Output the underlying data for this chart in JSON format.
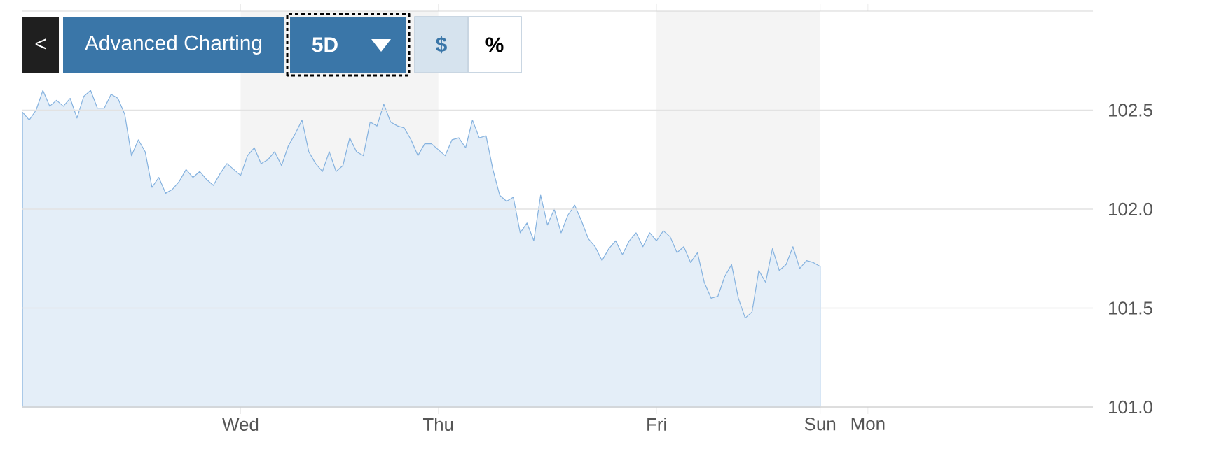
{
  "chart_data": {
    "type": "area",
    "categories": [
      null,
      null,
      null,
      null,
      null,
      null,
      null,
      null,
      null,
      null,
      null,
      null,
      null,
      null,
      null,
      null,
      null,
      null,
      null,
      null,
      null,
      null,
      null,
      null,
      null,
      null,
      null,
      null,
      null,
      null,
      null,
      null,
      "Wed",
      null,
      null,
      null,
      null,
      null,
      null,
      null,
      null,
      null,
      null,
      null,
      null,
      null,
      null,
      null,
      null,
      null,
      null,
      null,
      null,
      null,
      null,
      null,
      null,
      null,
      null,
      null,
      null,
      "Thu",
      null,
      null,
      null,
      null,
      null,
      null,
      null,
      null,
      null,
      null,
      null,
      null,
      null,
      null,
      null,
      null,
      null,
      null,
      null,
      null,
      null,
      null,
      null,
      null,
      null,
      null,
      null,
      null,
      null,
      null,
      null,
      "Fri",
      null,
      null,
      null,
      null,
      null,
      null,
      null,
      null,
      null,
      null,
      null,
      null,
      null,
      null,
      null,
      null,
      null,
      null,
      null,
      null,
      null,
      null,
      null,
      "Sun",
      null,
      null,
      null,
      null,
      null,
      null,
      "Mon",
      null,
      null,
      null,
      null,
      null,
      null,
      null,
      null,
      null,
      null,
      null,
      null,
      null,
      null,
      null,
      null,
      null,
      null,
      null,
      null,
      null,
      null,
      null,
      null,
      null,
      null,
      null,
      null,
      null,
      null,
      null,
      null,
      null
    ],
    "series": [
      {
        "color": "#85b2df",
        "values": [
          102.49,
          102.45,
          102.5,
          102.6,
          102.52,
          102.55,
          102.52,
          102.56,
          102.46,
          102.57,
          102.6,
          102.51,
          102.51,
          102.58,
          102.56,
          102.48,
          102.27,
          102.35,
          102.29,
          102.11,
          102.16,
          102.08,
          102.1,
          102.14,
          102.2,
          102.16,
          102.19,
          102.15,
          102.12,
          102.18,
          102.23,
          102.2,
          102.17,
          102.27,
          102.31,
          102.23,
          102.25,
          102.29,
          102.22,
          102.32,
          102.38,
          102.45,
          102.29,
          102.23,
          102.19,
          102.29,
          102.19,
          102.22,
          102.36,
          102.29,
          102.27,
          102.44,
          102.42,
          102.53,
          102.44,
          102.42,
          102.41,
          102.35,
          102.27,
          102.33,
          102.33,
          102.3,
          102.27,
          102.35,
          102.36,
          102.31,
          102.45,
          102.36,
          102.37,
          102.2,
          102.07,
          102.04,
          102.06,
          101.88,
          101.93,
          101.84,
          102.07,
          101.92,
          102.0,
          101.88,
          101.97,
          102.02,
          101.94,
          101.85,
          101.81,
          101.74,
          101.8,
          101.84,
          101.77,
          101.84,
          101.88,
          101.81,
          101.88,
          101.84,
          101.89,
          101.86,
          101.78,
          101.81,
          101.73,
          101.78,
          101.63,
          101.55,
          101.56,
          101.66,
          101.72,
          101.55,
          101.45,
          101.48,
          101.69,
          101.63,
          101.8,
          101.69,
          101.72,
          101.81,
          101.7,
          101.74,
          101.73,
          101.71,
          null,
          null,
          null,
          null,
          null,
          null,
          null,
          null,
          null,
          null,
          null,
          null,
          null,
          null,
          null,
          null,
          null,
          null,
          null,
          null,
          null,
          null,
          null,
          null,
          null,
          null,
          null,
          null,
          null,
          null,
          null,
          null,
          null,
          null,
          null,
          null,
          null,
          null,
          null,
          null
        ]
      }
    ],
    "ylim": [
      101,
      103
    ],
    "yticks": [
      {
        "value": 101,
        "label": "101.0"
      },
      101.5,
      {
        "value": 102,
        "label": "102.0"
      },
      102.5
    ],
    "grid": "y",
    "bands": [
      {
        "axis": "x",
        "from": "Wed",
        "to": "Thu",
        "color": "#f4f4f4"
      },
      {
        "axis": "x",
        "from": "Fri",
        "to": "Sun",
        "color": "#f4f4f4"
      }
    ],
    "annotations": [
      "<",
      "Advanced Charting",
      "5D",
      "$",
      "%"
    ]
  }
}
